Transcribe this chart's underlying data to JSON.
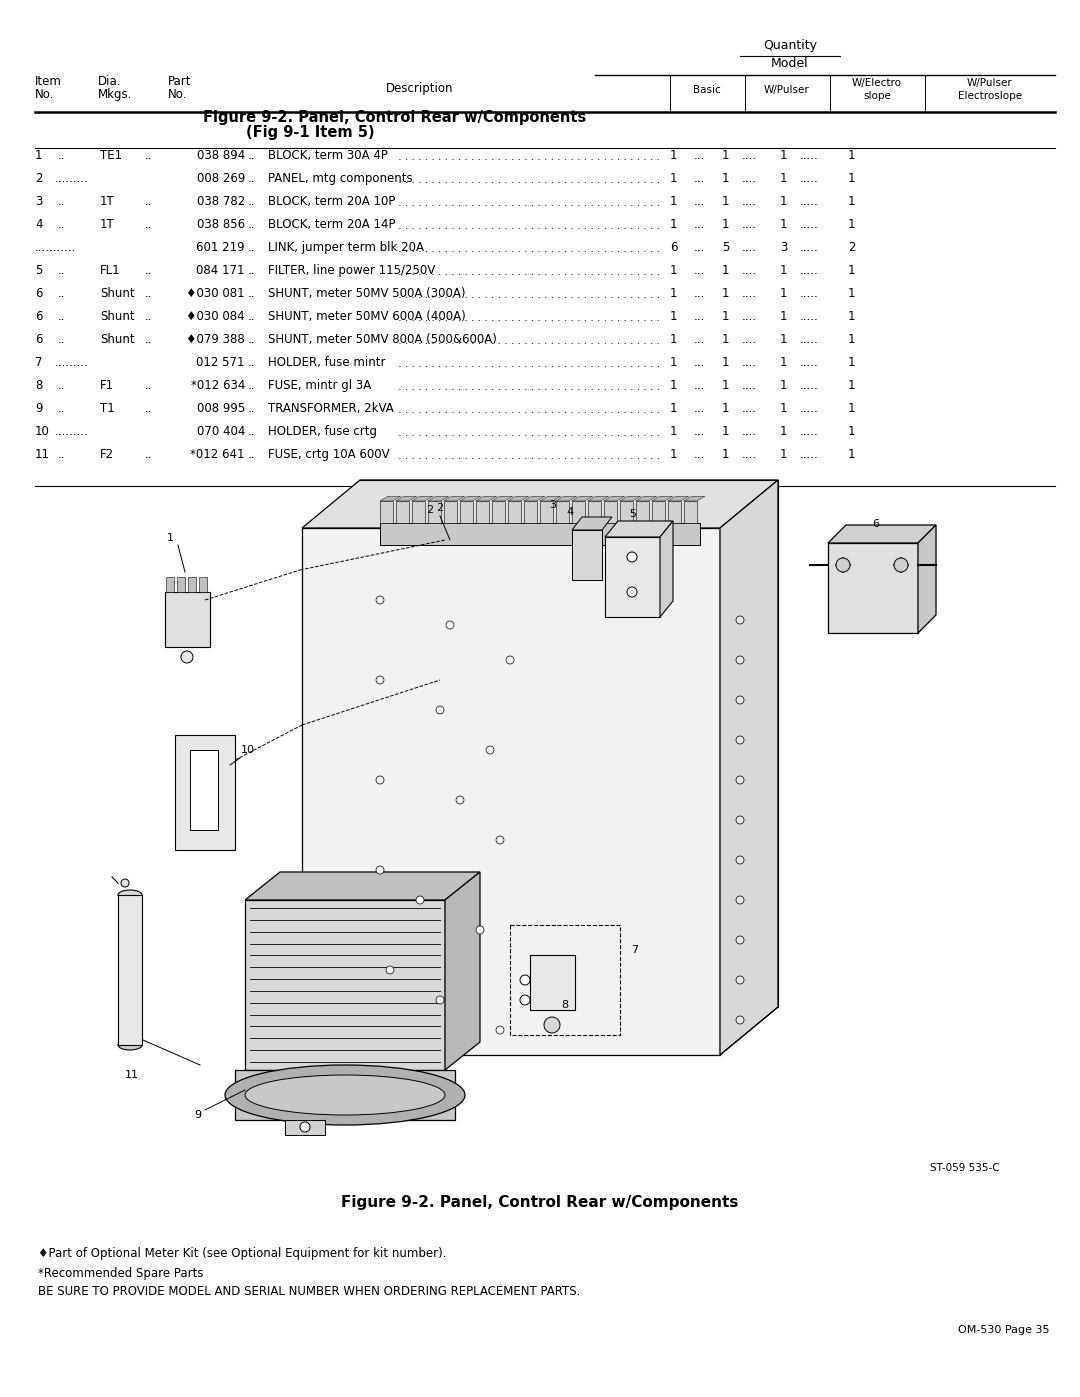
{
  "page_width": 10.8,
  "page_height": 13.97,
  "bg_color": "#ffffff",
  "quantity_label": "Quantity",
  "model_label": "Model",
  "figure_title_line1": "Figure 9-2. Panel, Control Rear w/Components",
  "figure_title_line2": "(Fig 9-1 Item 5)",
  "parts": [
    {
      "item": "1",
      "dia": "TE1",
      "part": "038 894",
      "desc": "BLOCK, term 30A 4P",
      "basic": "1",
      "wp": "1",
      "we": "1",
      "wpe": "1",
      "row_dots_left": " .. ",
      "row_sep1": " .. ",
      "row_sep2": " .. "
    },
    {
      "item": "2",
      "dia": "",
      "part": "008 269",
      "desc": "PANEL, mtg components",
      "basic": "1",
      "wp": "1",
      "we": "1",
      "wpe": "1",
      "row_dots_left": " ......... ",
      "row_sep1": " ... ",
      "row_sep2": " .... "
    },
    {
      "item": "3",
      "dia": "1T",
      "part": "038 782",
      "desc": "BLOCK, term 20A 10P",
      "basic": "1",
      "wp": "1",
      "we": "1",
      "wpe": "1",
      "row_dots_left": " ... ",
      "row_sep1": " ... ",
      "row_sep2": " ... "
    },
    {
      "item": "4",
      "dia": "1T",
      "part": "038 856",
      "desc": "BLOCK, term 20A 14P",
      "basic": "1",
      "wp": "1",
      "we": "1",
      "wpe": "1",
      "row_dots_left": " ... ",
      "row_sep1": " ... ",
      "row_sep2": " ... "
    },
    {
      "item": "",
      "dia": "",
      "part": "601 219",
      "desc": "LINK, jumper term blk 20A",
      "basic": "6",
      "wp": "5",
      "we": "3",
      "wpe": "2",
      "row_dots_left": " ........... ",
      "row_sep1": " ... ",
      "row_sep2": " ... "
    },
    {
      "item": "5",
      "dia": "FL1",
      "part": "084 171",
      "desc": "FILTER, line power 115/250V",
      "basic": "1",
      "wp": "1",
      "we": "1",
      "wpe": "1",
      "row_dots_left": " ... ",
      "row_sep1": " ... ",
      "row_sep2": " .. "
    },
    {
      "item": "6",
      "dia": "Shunt",
      "part": "♦030 081",
      "desc": "SHUNT, meter 50MV 500A (300A)",
      "basic": "1",
      "wp": "1",
      "we": "1",
      "wpe": "1",
      "row_dots_left": " .. ",
      "row_sep1": " ... ",
      "row_sep2": " .. "
    },
    {
      "item": "6",
      "dia": "Shunt",
      "part": "♦030 084",
      "desc": "SHUNT, meter 50MV 600A (400A)",
      "basic": "1",
      "wp": "1",
      "we": "1",
      "wpe": "1",
      "row_dots_left": " .. ",
      "row_sep1": " ... ",
      "row_sep2": " .. "
    },
    {
      "item": "6",
      "dia": "Shunt",
      "part": "♦079 388",
      "desc": "SHUNT, meter 50MV 800A (500&600A)",
      "basic": "1",
      "wp": "1",
      "we": "1",
      "wpe": "1",
      "row_dots_left": " .. ",
      "row_sep1": " ... ",
      "row_sep2": " .. "
    },
    {
      "item": "7",
      "dia": "",
      "part": "012 571",
      "desc": "HOLDER, fuse mintr",
      "basic": "1",
      "wp": "1",
      "we": "1",
      "wpe": "1",
      "row_dots_left": " ......... ",
      "row_sep1": " ... ",
      "row_sep2": " .... "
    },
    {
      "item": "8",
      "dia": "F1",
      "part": "*012 634",
      "desc": "FUSE, mintr gl 3A",
      "basic": "1",
      "wp": "1",
      "we": "1",
      "wpe": "1",
      "row_dots_left": " ... ",
      "row_sep1": " .. ",
      "row_sep2": " ... "
    },
    {
      "item": "9",
      "dia": "T1",
      "part": "008 995",
      "desc": "TRANSFORMER, 2kVA",
      "basic": "1",
      "wp": "1",
      "we": "1",
      "wpe": "1",
      "row_dots_left": " ... ",
      "row_sep1": " ... ",
      "row_sep2": " ... "
    },
    {
      "item": "10",
      "dia": "",
      "part": "070 404",
      "desc": "HOLDER, fuse crtg",
      "basic": "1",
      "wp": "1",
      "we": "1",
      "wpe": "1",
      "row_dots_left": " ......... ",
      "row_sep1": " ... ",
      "row_sep2": " .... "
    },
    {
      "item": "11",
      "dia": "F2",
      "part": "*012 641",
      "desc": "FUSE, crtg 10A 600V",
      "basic": "1",
      "wp": "1",
      "we": "1",
      "wpe": "1",
      "row_dots_left": " ... ",
      "row_sep1": " ... ",
      "row_sep2": " .... "
    }
  ],
  "caption": "Figure 9-2. Panel, Control Rear w/Components",
  "footnote1": "♦Part of Optional Meter Kit (see Optional Equipment for kit number).",
  "footnote2": "*Recommended Spare Parts",
  "footnote3": "BE SURE TO PROVIDE MODEL AND SERIAL NUMBER WHEN ORDERING REPLACEMENT PARTS.",
  "page_ref": "OM-530 Page 35",
  "diagram_ref": "ST-059 535-C"
}
